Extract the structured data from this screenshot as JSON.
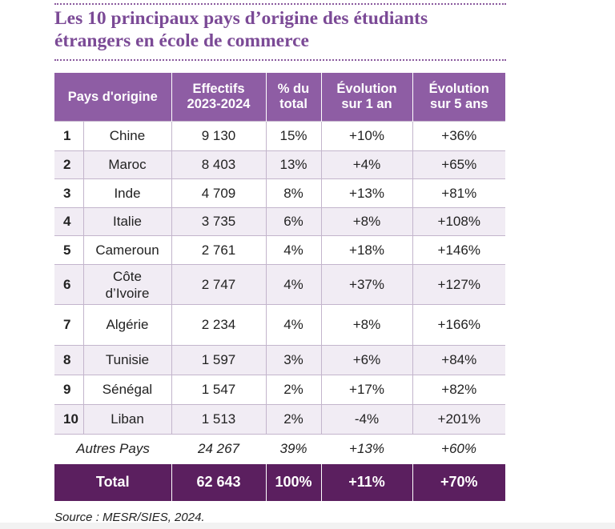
{
  "title_line1": "Les 10 principaux pays d’origine des étudiants",
  "title_line2": "étrangers en école de commerce",
  "headers": {
    "country": "Pays d'origine",
    "count_line1": "Effectifs",
    "count_line2": "2023-2024",
    "share_line1": "% du",
    "share_line2": "total",
    "evo1_line1": "Évolution",
    "evo1_line2": "sur 1 an",
    "evo5_line1": "Évolution",
    "evo5_line2": "sur 5 ans"
  },
  "rows": [
    {
      "rank": "1",
      "country": "Chine",
      "count": "9 130",
      "share": "15%",
      "evo1": "+10%",
      "evo5": "+36%"
    },
    {
      "rank": "2",
      "country": "Maroc",
      "count": "8 403",
      "share": "13%",
      "evo1": "+4%",
      "evo5": "+65%"
    },
    {
      "rank": "3",
      "country": "Inde",
      "count": "4 709",
      "share": "8%",
      "evo1": "+13%",
      "evo5": "+81%"
    },
    {
      "rank": "4",
      "country": "Italie",
      "count": "3 735",
      "share": "6%",
      "evo1": "+8%",
      "evo5": "+108%"
    },
    {
      "rank": "5",
      "country": "Cameroun",
      "count": "2 761",
      "share": "4%",
      "evo1": "+18%",
      "evo5": "+146%"
    },
    {
      "rank": "6",
      "country_line1": "Côte",
      "country_line2": "d’Ivoire",
      "count": "2 747",
      "share": "4%",
      "evo1": "+37%",
      "evo5": "+127%"
    },
    {
      "rank": "7",
      "country": "Algérie",
      "count": "2 234",
      "share": "4%",
      "evo1": "+8%",
      "evo5": "+166%"
    },
    {
      "rank": "8",
      "country": "Tunisie",
      "count": "1 597",
      "share": "3%",
      "evo1": "+6%",
      "evo5": "+84%"
    },
    {
      "rank": "9",
      "country": "Sénégal",
      "count": "1 547",
      "share": "2%",
      "evo1": "+17%",
      "evo5": "+82%"
    },
    {
      "rank": "10",
      "country": "Liban",
      "count": "1 513",
      "share": "2%",
      "evo1": "-4%",
      "evo5": "+201%"
    }
  ],
  "other": {
    "label": "Autres Pays",
    "count": "24 267",
    "share": "39%",
    "evo1": "+13%",
    "evo5": "+60%"
  },
  "total": {
    "label": "Total",
    "count": "62 643",
    "share": "100%",
    "evo1": "+11%",
    "evo5": "+70%"
  },
  "source": "Source : MESR/SIES, 2024."
}
